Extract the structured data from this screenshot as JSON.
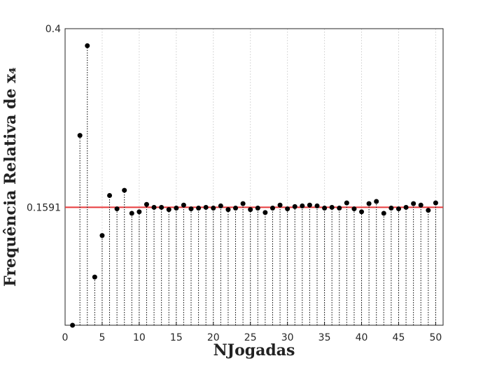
{
  "chart_data": {
    "type": "stem",
    "xlabel": "NJogadas",
    "ylabel": "Frequência Relativa de x₄",
    "x": [
      1,
      2,
      3,
      4,
      5,
      6,
      7,
      8,
      9,
      10,
      11,
      12,
      13,
      14,
      15,
      16,
      17,
      18,
      19,
      20,
      21,
      22,
      23,
      24,
      25,
      26,
      27,
      28,
      29,
      30,
      31,
      32,
      33,
      34,
      35,
      36,
      37,
      38,
      39,
      40,
      41,
      42,
      43,
      44,
      45,
      46,
      47,
      48,
      49,
      50
    ],
    "values": [
      0,
      0.256,
      0.377,
      0.065,
      0.121,
      0.175,
      0.157,
      0.182,
      0.151,
      0.153,
      0.163,
      0.159,
      0.159,
      0.156,
      0.158,
      0.162,
      0.157,
      0.158,
      0.159,
      0.158,
      0.161,
      0.156,
      0.158,
      0.164,
      0.156,
      0.158,
      0.152,
      0.158,
      0.162,
      0.157,
      0.16,
      0.161,
      0.162,
      0.161,
      0.158,
      0.159,
      0.158,
      0.165,
      0.157,
      0.153,
      0.164,
      0.167,
      0.151,
      0.158,
      0.157,
      0.159,
      0.164,
      0.162,
      0.155,
      0.165
    ],
    "color": "#000000",
    "ref_line": 0.1591,
    "ref_color": "#e8393b",
    "xlim": [
      0,
      51
    ],
    "xticks": [
      0,
      5,
      10,
      15,
      20,
      25,
      30,
      35,
      40,
      45,
      50
    ],
    "ylim": [
      0,
      0.4
    ],
    "yticks": [
      0.1591,
      0.4
    ],
    "grid": true
  }
}
